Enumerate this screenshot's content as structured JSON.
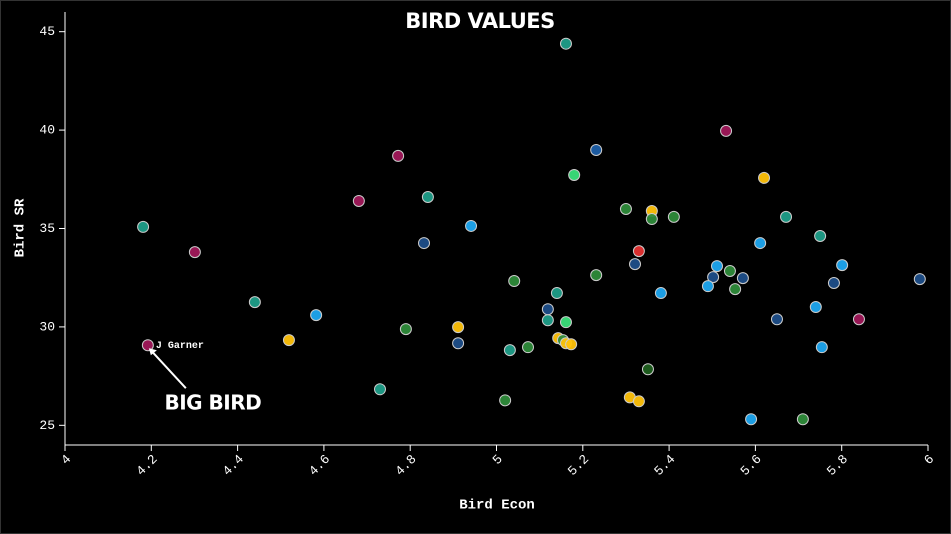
{
  "chart_data": {
    "type": "scatter",
    "title": "BIRD VALUES",
    "x_label": "Bird Econ",
    "y_label": "Bird SR",
    "annotations": [
      "J Garner",
      "BIG BIRD"
    ],
    "x": [
      5.161,
      5.532,
      5.231,
      4.772,
      5.18,
      5.62,
      4.841,
      4.681,
      5.3,
      5.36,
      5.36,
      5.411,
      5.671,
      4.181,
      4.941,
      5.75,
      4.832,
      5.611,
      4.301,
      5.33,
      5.321,
      5.511,
      5.801,
      5.541,
      5.231,
      5.502,
      5.571,
      5.981,
      5.041,
      5.782,
      5.49,
      5.553,
      5.381,
      5.14,
      4.44,
      5.119,
      5.74,
      4.582,
      5.65,
      5.84,
      5.119,
      5.161,
      4.79,
      4.911,
      4.519,
      5.143,
      5.154,
      5.161,
      5.173,
      4.911,
      5.073,
      5.031,
      5.754,
      4.192,
      5.351,
      4.73,
      5.309,
      5.33,
      5.02,
      5.59,
      5.71
    ],
    "values": [
      44.39,
      39.96,
      38.99,
      38.69,
      37.72,
      37.57,
      36.6,
      36.4,
      35.99,
      35.89,
      35.48,
      35.59,
      35.59,
      35.08,
      35.13,
      34.62,
      34.26,
      34.26,
      33.8,
      33.85,
      33.19,
      33.09,
      33.14,
      32.84,
      32.63,
      32.53,
      32.48,
      32.43,
      32.33,
      32.23,
      32.07,
      31.92,
      31.72,
      31.72,
      31.26,
      30.9,
      31.01,
      30.6,
      30.39,
      30.39,
      30.34,
      30.24,
      29.89,
      29.99,
      29.33,
      29.43,
      29.33,
      29.17,
      29.12,
      29.17,
      28.97,
      28.82,
      28.97,
      29.07,
      27.85,
      26.83,
      26.42,
      26.22,
      26.27,
      25.31,
      25.31
    ],
    "colors": [
      "#1f9e89",
      "#a0185a",
      "#1d5fa8",
      "#a0185a",
      "#3be07b",
      "#ffc20a",
      "#1f9e89",
      "#a0185a",
      "#2e8b3a",
      "#ffc20a",
      "#2e8b3a",
      "#2e8b3a",
      "#1f9e89",
      "#1f9e89",
      "#1ea7f0",
      "#1f9e89",
      "#1d4e89",
      "#1ea7f0",
      "#a0185a",
      "#e63232",
      "#1d4e89",
      "#1ea7f0",
      "#1ea7f0",
      "#2e8b3a",
      "#2e8b3a",
      "#1d4e89",
      "#1d4e89",
      "#1d4e89",
      "#2e8b3a",
      "#1d4e89",
      "#1ea7f0",
      "#2e8b3a",
      "#1ea7f0",
      "#1f9e89",
      "#1f9e89",
      "#1d4e89",
      "#1ea7f0",
      "#1ea7f0",
      "#1d4e89",
      "#a0185a",
      "#1f9e89",
      "#3be07b",
      "#2e8b3a",
      "#ffc20a",
      "#ffc20a",
      "#ffc20a",
      "#2e8b3a",
      "#ffc20a",
      "#ffc20a",
      "#1d4e89",
      "#2e8b3a",
      "#1f9e89",
      "#1ea7f0",
      "#a0185a",
      "#1f5f1f",
      "#1f9e89",
      "#ffc20a",
      "#ffc20a",
      "#2e8b3a",
      "#1ea7f0",
      "#2e8b3a"
    ],
    "xlim": [
      4,
      6
    ],
    "xticks": [
      4,
      4.2,
      4.4,
      4.6,
      4.8,
      5,
      5.2,
      5.4,
      5.6,
      5.8,
      6
    ],
    "ylim": [
      24,
      46
    ],
    "yticks": [
      25,
      30,
      35,
      40,
      45
    ]
  }
}
